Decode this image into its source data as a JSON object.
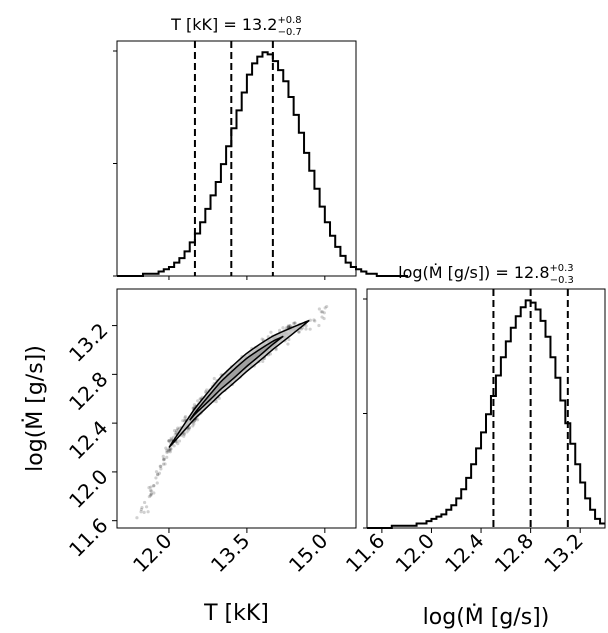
{
  "chart_data": [
    {
      "type": "histogram",
      "panel": "top-left",
      "parameter": "T [kK]",
      "title": {
        "main": "T [kK] = 13.2",
        "sup": "+0.8",
        "sub": "−0.7"
      },
      "xlim": [
        11.0,
        15.6
      ],
      "quantiles": [
        12.5,
        13.2,
        14.0
      ],
      "bins": {
        "start": 11.0,
        "width": 0.1
      },
      "counts": [
        0,
        0,
        0,
        0,
        0,
        1,
        1,
        1,
        2,
        3,
        4,
        6,
        8,
        11,
        15,
        19,
        24,
        30,
        36,
        42,
        50,
        58,
        66,
        74,
        82,
        90,
        95,
        98,
        100,
        99,
        96,
        92,
        87,
        80,
        72,
        64,
        55,
        47,
        39,
        31,
        24,
        18,
        13,
        9,
        6,
        4,
        3,
        2,
        1,
        1,
        0,
        0,
        0,
        0,
        0,
        0
      ],
      "counts_units": "percent of peak",
      "y_ticks_shown": 3,
      "y_tick_labels": []
    },
    {
      "type": "scatter",
      "panel": "bottom-left",
      "xlabel": "T [kK]",
      "ylabel": "log(Ṁ [g/s])",
      "xlim": [
        11.0,
        15.6
      ],
      "ylim": [
        11.54,
        13.5
      ],
      "x_ticks": [
        "12.0",
        "13.5",
        "15.0"
      ],
      "y_ticks": [
        "11.6",
        "12.0",
        "12.4",
        "12.8",
        "13.2"
      ],
      "trend": {
        "x": [
          11.5,
          12.0,
          12.5,
          13.0,
          13.5,
          14.0,
          14.5,
          15.0,
          15.4
        ],
        "y": [
          11.67,
          12.2,
          12.48,
          12.71,
          12.9,
          13.06,
          13.19,
          13.32,
          13.42
        ]
      },
      "contours": "1-sigma and 2-sigma levels along trend",
      "points_color": "#000000"
    },
    {
      "type": "histogram",
      "panel": "bottom-right",
      "parameter": "log(Ṁ [g/s])",
      "title": {
        "main": "log(Ṁ [g/s]) = 12.8",
        "sup": "+0.3",
        "sub": "−0.3"
      },
      "xlabel": "log(Ṁ [g/s])",
      "xlim": [
        11.48,
        13.4
      ],
      "quantiles": [
        12.5,
        12.8,
        13.1
      ],
      "x_ticks": [
        "11.6",
        "12.0",
        "12.4",
        "12.8",
        "13.2"
      ],
      "bins": {
        "start": 11.48,
        "width": 0.04
      },
      "counts": [
        0,
        0,
        0,
        0,
        0,
        1,
        1,
        1,
        1,
        1,
        2,
        2,
        3,
        4,
        5,
        6,
        8,
        10,
        13,
        17,
        22,
        28,
        35,
        42,
        50,
        58,
        67,
        75,
        82,
        88,
        93,
        97,
        100,
        99,
        96,
        91,
        84,
        75,
        66,
        56,
        46,
        37,
        28,
        20,
        13,
        8,
        4,
        2
      ],
      "counts_units": "percent of peak",
      "y_ticks_shown": 3,
      "y_tick_labels": []
    }
  ],
  "style": {
    "line_color": "#000000",
    "contour_fill": "#c8c8c8",
    "background": "#ffffff"
  }
}
